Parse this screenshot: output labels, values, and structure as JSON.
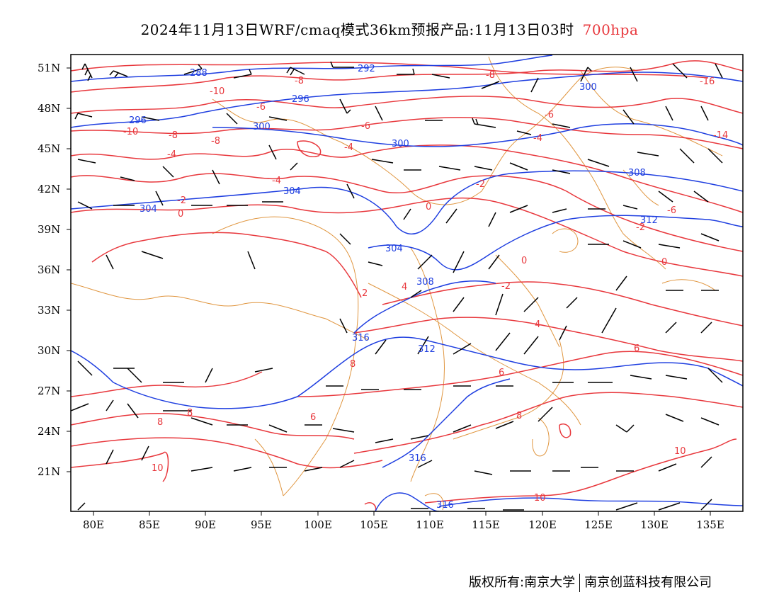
{
  "title": {
    "main": "2024年11月13日WRF/cmaq模式36km预报产品:11月13日03时",
    "level": "700hpa"
  },
  "colors": {
    "temperature_contour": "#e8383d",
    "height_contour": "#1f3fe0",
    "boundary": "#e09640",
    "wind_barb": "#000000"
  },
  "axes": {
    "lat_labels": [
      "51N",
      "48N",
      "45N",
      "42N",
      "39N",
      "36N",
      "33N",
      "30N",
      "27N",
      "24N",
      "21N"
    ],
    "lon_labels": [
      "80E",
      "85E",
      "90E",
      "95E",
      "100E",
      "105E",
      "110E",
      "115E",
      "120E",
      "125E",
      "130E",
      "135E"
    ]
  },
  "height_labels": [
    "288",
    "292",
    "296",
    "296",
    "300",
    "300",
    "300",
    "304",
    "304",
    "304",
    "308",
    "308",
    "312",
    "312",
    "316",
    "316",
    "316"
  ],
  "temperature_labels": [
    "-16",
    "-14",
    "-10",
    "-10",
    "-8",
    "-8",
    "-8",
    "-8",
    "-6",
    "-6",
    "-6",
    "-6",
    "-4",
    "-4",
    "-4",
    "-4",
    "-2",
    "-2",
    "-2",
    "0",
    "0",
    "0",
    "0",
    "2",
    "-2",
    "4",
    "4",
    "6",
    "6",
    "6",
    "8",
    "8",
    "8",
    "8",
    "10",
    "10",
    "10"
  ],
  "footer": {
    "left": "版权所有:南京大学",
    "right": "南京创蓝科技有限公司"
  }
}
